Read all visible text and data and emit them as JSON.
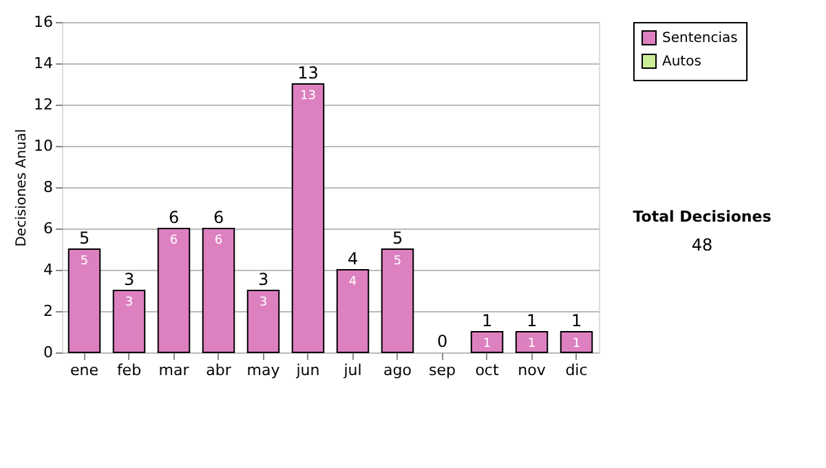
{
  "chart_data": {
    "type": "bar",
    "stacked": true,
    "ylabel": "Decisiones Anual",
    "categories": [
      "ene",
      "feb",
      "mar",
      "abr",
      "may",
      "jun",
      "jul",
      "ago",
      "sep",
      "oct",
      "nov",
      "dic"
    ],
    "series": [
      {
        "name": "Sentencias",
        "color": "#dd80c0",
        "values": [
          5,
          3,
          6,
          6,
          3,
          13,
          4,
          5,
          0,
          1,
          1,
          1
        ],
        "value_labels": [
          "5",
          "3",
          "6",
          "6",
          "3",
          "13",
          "4",
          "5",
          null,
          "1",
          "1",
          "1"
        ]
      },
      {
        "name": "Autos",
        "color": "#ccee99",
        "values": [
          0,
          0,
          0,
          0,
          0,
          0,
          0,
          0,
          0,
          0,
          0,
          0
        ]
      }
    ],
    "totals": [
      "5",
      "3",
      "6",
      "6",
      "3",
      "13",
      "4",
      "5",
      "0",
      "1",
      "1",
      "1"
    ],
    "ylim": [
      0,
      16
    ],
    "yticks": [
      0,
      2,
      4,
      6,
      8,
      10,
      12,
      14,
      16
    ],
    "grid": "y",
    "legend": "right",
    "annotations": [
      "Total Decisiones",
      "48"
    ]
  }
}
